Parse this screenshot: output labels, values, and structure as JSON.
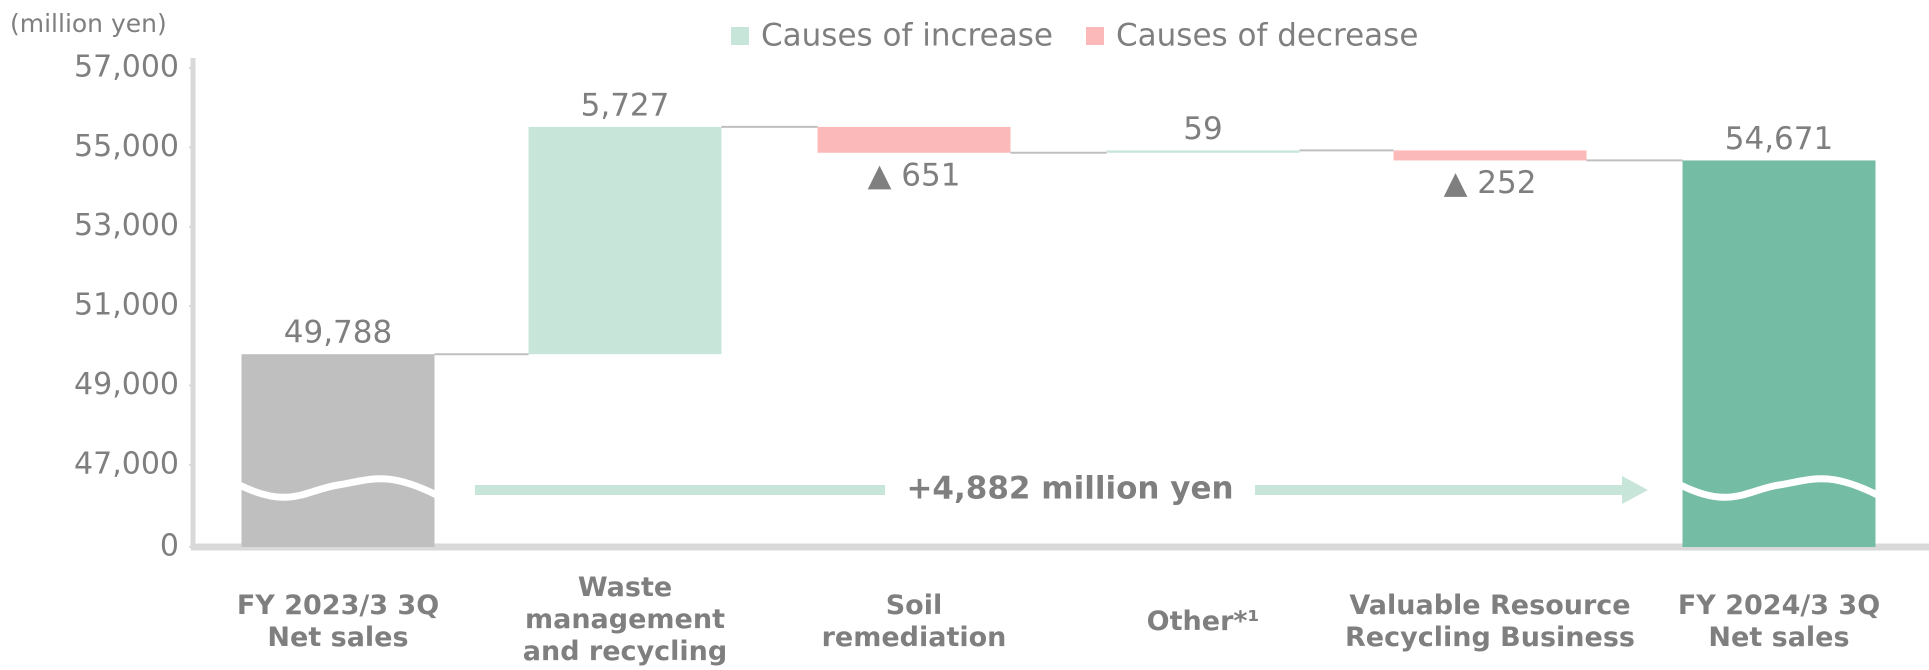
{
  "chart_data": {
    "type": "waterfall",
    "unit_label": "(million yen)",
    "categories": [
      [
        "FY 2023/3  3Q",
        "Net  sales"
      ],
      [
        "Waste",
        "management",
        "and recycling"
      ],
      [
        "Soil",
        "remediation"
      ],
      [
        "Other*¹"
      ],
      [
        "Valuable Resource",
        "Recycling Business"
      ],
      [
        "FY 2024/3  3Q",
        "Net  sales"
      ]
    ],
    "values": [
      49788,
      5727,
      -651,
      59,
      -252,
      54671
    ],
    "value_labels": [
      "49,788",
      "5,727",
      "▲ 651",
      "59",
      "▲ 252",
      "54,671"
    ],
    "is_total": [
      true,
      false,
      false,
      false,
      false,
      true
    ],
    "colors": [
      "#bfbfbf",
      "#c8e5da",
      "#fbb9b9",
      "#c8e5da",
      "#fbb9b9",
      "#74bca4"
    ],
    "legend": [
      {
        "name": "Causes of increase",
        "color": "#c8e5da"
      },
      {
        "name": "Causes of decrease",
        "color": "#fbb9b9"
      }
    ],
    "annotation": "+4,882 million yen",
    "ylim": [
      0,
      57000
    ],
    "axis_break": [
      0,
      44930
    ],
    "yticks": [
      0,
      {
        "value": 47000,
        "label": "47,000"
      },
      {
        "value": 49000,
        "label": "49,000"
      },
      {
        "value": 51000,
        "label": "51,000"
      },
      {
        "value": 53000,
        "label": "53,000"
      },
      {
        "value": 55000,
        "label": "55,000"
      },
      {
        "value": 57000,
        "label": "57,000"
      }
    ]
  }
}
